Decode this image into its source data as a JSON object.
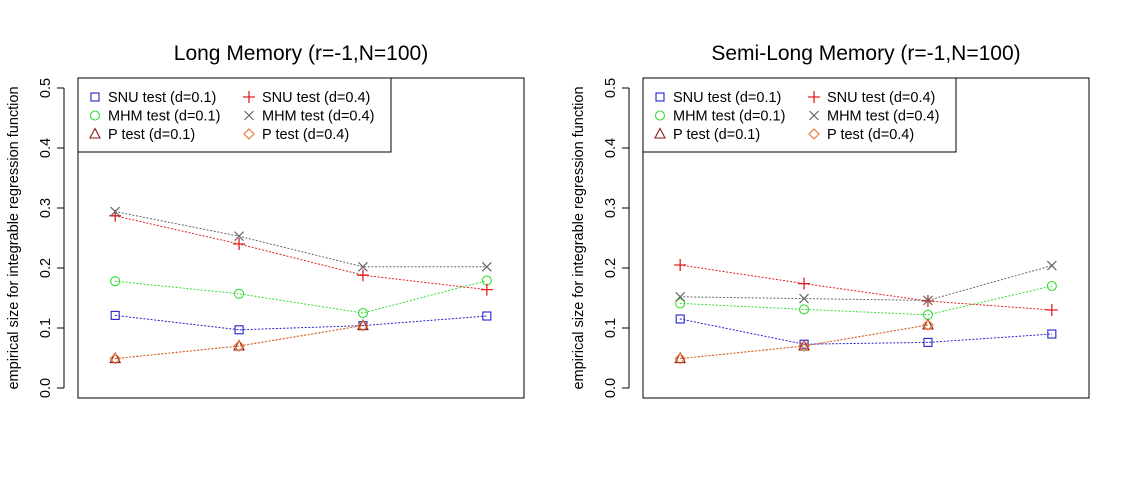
{
  "chart_data": [
    {
      "type": "scatter",
      "title": "Long Memory (r=-1,N=100)",
      "ylabel": "empirical size for integrable regression function",
      "xlabel": "",
      "x": [
        1,
        2,
        3,
        4
      ],
      "xlim": [
        0.7,
        4.3
      ],
      "ylim": [
        0,
        0.5
      ],
      "yticks": [
        "0.0",
        "0.1",
        "0.2",
        "0.3",
        "0.4",
        "0.5"
      ],
      "grid": false,
      "legend_position": "top-left",
      "line_style": "dotted",
      "series": [
        {
          "name": "SNU test (d=0.1)",
          "marker": "square",
          "color": "#2222cc",
          "values": [
            0.121,
            0.097,
            0.104,
            0.12
          ]
        },
        {
          "name": "MHM test (d=0.1)",
          "marker": "circle",
          "color": "#33dd33",
          "values": [
            0.178,
            0.157,
            0.125,
            0.179
          ]
        },
        {
          "name": "P test (d=0.1)",
          "marker": "triangle",
          "color": "#8b1a1a",
          "values": [
            0.049,
            0.07,
            0.104,
            null
          ]
        },
        {
          "name": "SNU test (d=0.4)",
          "marker": "plus",
          "color": "#e02020",
          "values": [
            0.287,
            0.24,
            0.188,
            0.164
          ]
        },
        {
          "name": "MHM test (d=0.4)",
          "marker": "cross",
          "color": "#666666",
          "values": [
            0.294,
            0.253,
            0.202,
            0.202
          ]
        },
        {
          "name": "P test (d=0.4)",
          "marker": "diamond",
          "color": "#e8732a",
          "values": [
            0.049,
            0.07,
            0.104,
            null
          ]
        }
      ]
    },
    {
      "type": "scatter",
      "title": "Semi-Long Memory (r=-1,N=100)",
      "ylabel": "empirical size for integrable regression function",
      "xlabel": "",
      "x": [
        1,
        2,
        3,
        4
      ],
      "xlim": [
        0.7,
        4.3
      ],
      "ylim": [
        0,
        0.5
      ],
      "yticks": [
        "0.0",
        "0.1",
        "0.2",
        "0.3",
        "0.4",
        "0.5"
      ],
      "grid": false,
      "legend_position": "top-left",
      "line_style": "dotted",
      "series": [
        {
          "name": "SNU test (d=0.1)",
          "marker": "square",
          "color": "#2222cc",
          "values": [
            0.115,
            0.073,
            0.076,
            0.09
          ]
        },
        {
          "name": "MHM test (d=0.1)",
          "marker": "circle",
          "color": "#33dd33",
          "values": [
            0.141,
            0.131,
            0.122,
            0.17
          ]
        },
        {
          "name": "P test (d=0.1)",
          "marker": "triangle",
          "color": "#8b1a1a",
          "values": [
            0.049,
            0.07,
            0.105,
            null
          ]
        },
        {
          "name": "SNU test (d=0.4)",
          "marker": "plus",
          "color": "#e02020",
          "values": [
            0.205,
            0.174,
            0.145,
            0.13
          ]
        },
        {
          "name": "MHM test (d=0.4)",
          "marker": "cross",
          "color": "#666666",
          "values": [
            0.152,
            0.149,
            0.146,
            0.204
          ]
        },
        {
          "name": "P test (d=0.4)",
          "marker": "diamond",
          "color": "#e8732a",
          "values": [
            0.049,
            0.07,
            0.105,
            null
          ]
        }
      ]
    }
  ]
}
